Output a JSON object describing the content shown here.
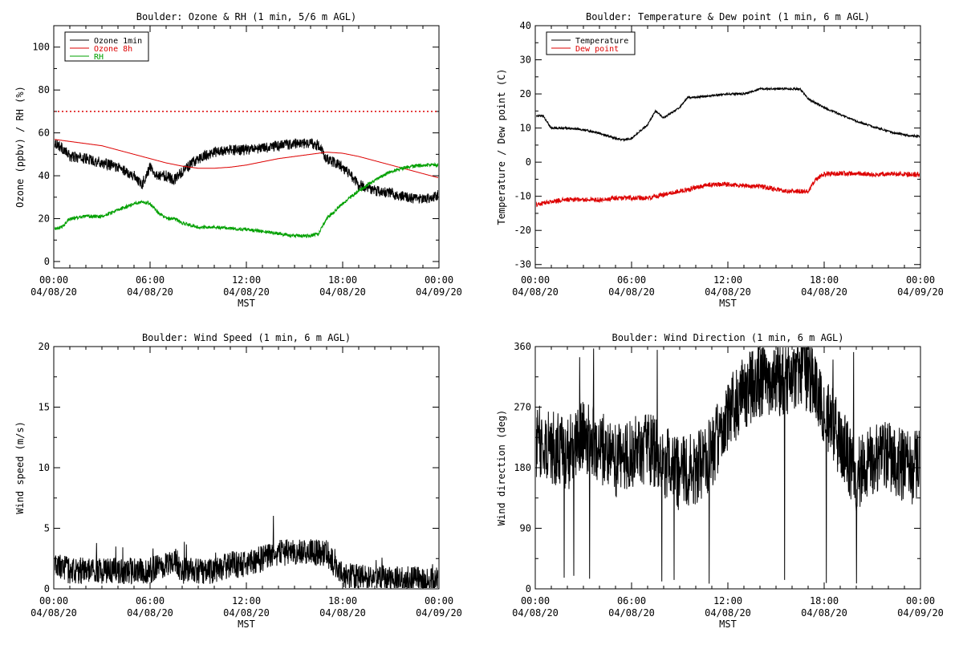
{
  "chart_data": [
    {
      "type": "line",
      "title": "Boulder: Ozone & RH (1 min, 5/6 m AGL)",
      "ylabel": "Ozone (ppbv) / RH (%)",
      "xlabel": "MST",
      "x_ticks": [
        {
          "hour": 0,
          "time": "00:00",
          "date": "04/08/20"
        },
        {
          "hour": 6,
          "time": "06:00",
          "date": "04/08/20"
        },
        {
          "hour": 12,
          "time": "12:00",
          "date": "04/08/20"
        },
        {
          "hour": 18,
          "time": "18:00",
          "date": "04/08/20"
        },
        {
          "hour": 24,
          "time": "00:00",
          "date": "04/09/20"
        }
      ],
      "xlim": [
        0,
        24
      ],
      "ylim": [
        -3,
        110
      ],
      "y_ticks": [
        0,
        20,
        40,
        60,
        80,
        100
      ],
      "legend_position": "top-left",
      "reference_line": {
        "y": 70,
        "color": "#dd0000",
        "style": "dotted"
      },
      "series": [
        {
          "name": "Ozone 1min",
          "color": "#000000",
          "noise": 2.5,
          "x": [
            0,
            0.5,
            1,
            2,
            3,
            4,
            5,
            5.5,
            6,
            6.5,
            7,
            7.5,
            8,
            9,
            10,
            11,
            12,
            13,
            14,
            15,
            16,
            16.5,
            17,
            18,
            19,
            20,
            21,
            22,
            23,
            24
          ],
          "values": [
            56,
            53,
            49,
            48,
            46,
            44,
            40,
            36,
            44,
            40,
            40,
            38,
            42,
            48,
            51,
            52,
            52,
            53,
            54,
            55,
            55,
            54,
            48,
            44,
            36,
            33,
            32,
            30,
            29,
            31
          ]
        },
        {
          "name": "Ozone 8h",
          "color": "#dd0000",
          "noise": 0,
          "x": [
            0,
            1,
            2,
            3,
            4,
            5,
            6,
            7,
            8,
            9,
            10,
            11,
            12,
            13,
            14,
            15,
            16,
            17,
            18,
            19,
            20,
            21,
            22,
            23,
            24
          ],
          "values": [
            57,
            56,
            55,
            54,
            52,
            50,
            48,
            46,
            44.5,
            43.5,
            43.5,
            44,
            45,
            46.5,
            48,
            49,
            50,
            51,
            50.5,
            49,
            47,
            45,
            43,
            41,
            39
          ]
        },
        {
          "name": "RH",
          "color": "#00a000",
          "noise": 0.8,
          "x": [
            0,
            0.5,
            1,
            2,
            3,
            4,
            5,
            5.5,
            6,
            6.5,
            7,
            7.5,
            8,
            9,
            10,
            11,
            12,
            13,
            14,
            15,
            16,
            16.5,
            17,
            18,
            19,
            20,
            21,
            22,
            23,
            24
          ],
          "values": [
            15,
            16,
            20,
            21,
            21,
            24,
            27,
            28,
            27,
            23,
            20,
            20,
            18,
            16,
            16,
            15.5,
            15,
            14,
            13,
            12,
            12,
            13,
            20,
            27,
            33,
            38,
            42,
            44,
            45,
            45
          ]
        }
      ]
    },
    {
      "type": "line",
      "title": "Boulder: Temperature & Dew point (1 min, 6 m AGL)",
      "ylabel": "Temperature / Dew point (C)",
      "xlabel": "MST",
      "x_ticks": [
        {
          "hour": 0,
          "time": "00:00",
          "date": "04/08/20"
        },
        {
          "hour": 6,
          "time": "06:00",
          "date": "04/08/20"
        },
        {
          "hour": 12,
          "time": "12:00",
          "date": "04/08/20"
        },
        {
          "hour": 18,
          "time": "18:00",
          "date": "04/08/20"
        },
        {
          "hour": 24,
          "time": "00:00",
          "date": "04/09/20"
        }
      ],
      "xlim": [
        0,
        24
      ],
      "ylim": [
        -31,
        40
      ],
      "y_ticks": [
        -30,
        -20,
        -10,
        0,
        10,
        20,
        30,
        40
      ],
      "legend_position": "top-left",
      "series": [
        {
          "name": "Temperature",
          "color": "#000000",
          "noise": 0.3,
          "x": [
            0,
            0.5,
            1,
            2,
            3,
            4,
            5,
            5.5,
            6,
            7,
            7.5,
            8,
            9,
            9.5,
            10,
            11,
            12,
            13,
            14,
            15,
            16,
            16.5,
            17,
            18,
            19,
            20,
            21,
            22,
            23,
            24
          ],
          "values": [
            13.5,
            13.5,
            10,
            10,
            9.5,
            8.5,
            7,
            6.5,
            7,
            11,
            15,
            13,
            16,
            19,
            19,
            19.5,
            20,
            20,
            21.5,
            21.5,
            21.5,
            21.5,
            18.5,
            16,
            14,
            12,
            10.5,
            9,
            8,
            7.5
          ]
        },
        {
          "name": "Dew point",
          "color": "#dd0000",
          "noise": 0.7,
          "x": [
            0,
            1,
            2,
            3,
            4,
            5,
            6,
            7,
            8,
            9,
            10,
            11,
            12,
            13,
            14,
            15,
            16,
            17,
            17.5,
            18,
            19,
            20,
            21,
            22,
            23,
            24
          ],
          "values": [
            -12.5,
            -11.5,
            -11,
            -11,
            -11,
            -10.5,
            -10.5,
            -10.5,
            -9.5,
            -8.5,
            -7.5,
            -6.5,
            -6.5,
            -7,
            -7,
            -8,
            -8.5,
            -8.5,
            -5,
            -3.5,
            -3.3,
            -3.3,
            -3.5,
            -3.5,
            -3.5,
            -3.7
          ]
        }
      ]
    },
    {
      "type": "line",
      "title": "Boulder: Wind Speed (1 min, 6 m AGL)",
      "ylabel": "Wind speed (m/s)",
      "xlabel": "MST",
      "x_ticks": [
        {
          "hour": 0,
          "time": "00:00",
          "date": "04/08/20"
        },
        {
          "hour": 6,
          "time": "06:00",
          "date": "04/08/20"
        },
        {
          "hour": 12,
          "time": "12:00",
          "date": "04/08/20"
        },
        {
          "hour": 18,
          "time": "18:00",
          "date": "04/08/20"
        },
        {
          "hour": 24,
          "time": "00:00",
          "date": "04/09/20"
        }
      ],
      "xlim": [
        0,
        24
      ],
      "ylim": [
        0,
        20
      ],
      "y_ticks": [
        0,
        5,
        10,
        15,
        20
      ],
      "series": [
        {
          "name": "",
          "color": "#000000",
          "noise": 1.1,
          "x": [
            0,
            1,
            2,
            3,
            4,
            5,
            6,
            7,
            7.5,
            8,
            9,
            10,
            11,
            12,
            13,
            14,
            15,
            16,
            17,
            17.5,
            18,
            19,
            20,
            21,
            22,
            23,
            24
          ],
          "values": [
            2,
            1.5,
            1.5,
            1.5,
            1.5,
            1.5,
            1.5,
            2,
            2.5,
            1.5,
            1.5,
            1.5,
            2,
            2,
            2.5,
            3,
            3,
            3,
            3,
            2,
            1,
            1,
            1,
            0.8,
            0.8,
            0.7,
            0.7
          ]
        }
      ]
    },
    {
      "type": "line",
      "title": "Boulder: Wind Direction (1 min, 6 m AGL)",
      "ylabel": "Wind direction (deg)",
      "xlabel": "MST",
      "x_ticks": [
        {
          "hour": 0,
          "time": "00:00",
          "date": "04/08/20"
        },
        {
          "hour": 6,
          "time": "06:00",
          "date": "04/08/20"
        },
        {
          "hour": 12,
          "time": "12:00",
          "date": "04/08/20"
        },
        {
          "hour": 18,
          "time": "18:00",
          "date": "04/08/20"
        },
        {
          "hour": 24,
          "time": "00:00",
          "date": "04/09/20"
        }
      ],
      "xlim": [
        0,
        24
      ],
      "ylim": [
        0,
        360
      ],
      "y_ticks": [
        0,
        90,
        180,
        270,
        360
      ],
      "series": [
        {
          "name": "",
          "color": "#000000",
          "noise": 55,
          "x": [
            0,
            1,
            2,
            3,
            4,
            5,
            6,
            7,
            8,
            9,
            10,
            11,
            12,
            13,
            14,
            15,
            16,
            17,
            18,
            19,
            20,
            21,
            22,
            23,
            24
          ],
          "values": [
            220,
            210,
            200,
            230,
            210,
            190,
            200,
            210,
            190,
            170,
            180,
            200,
            260,
            290,
            310,
            310,
            310,
            320,
            270,
            220,
            170,
            190,
            200,
            180,
            180
          ]
        }
      ]
    }
  ]
}
